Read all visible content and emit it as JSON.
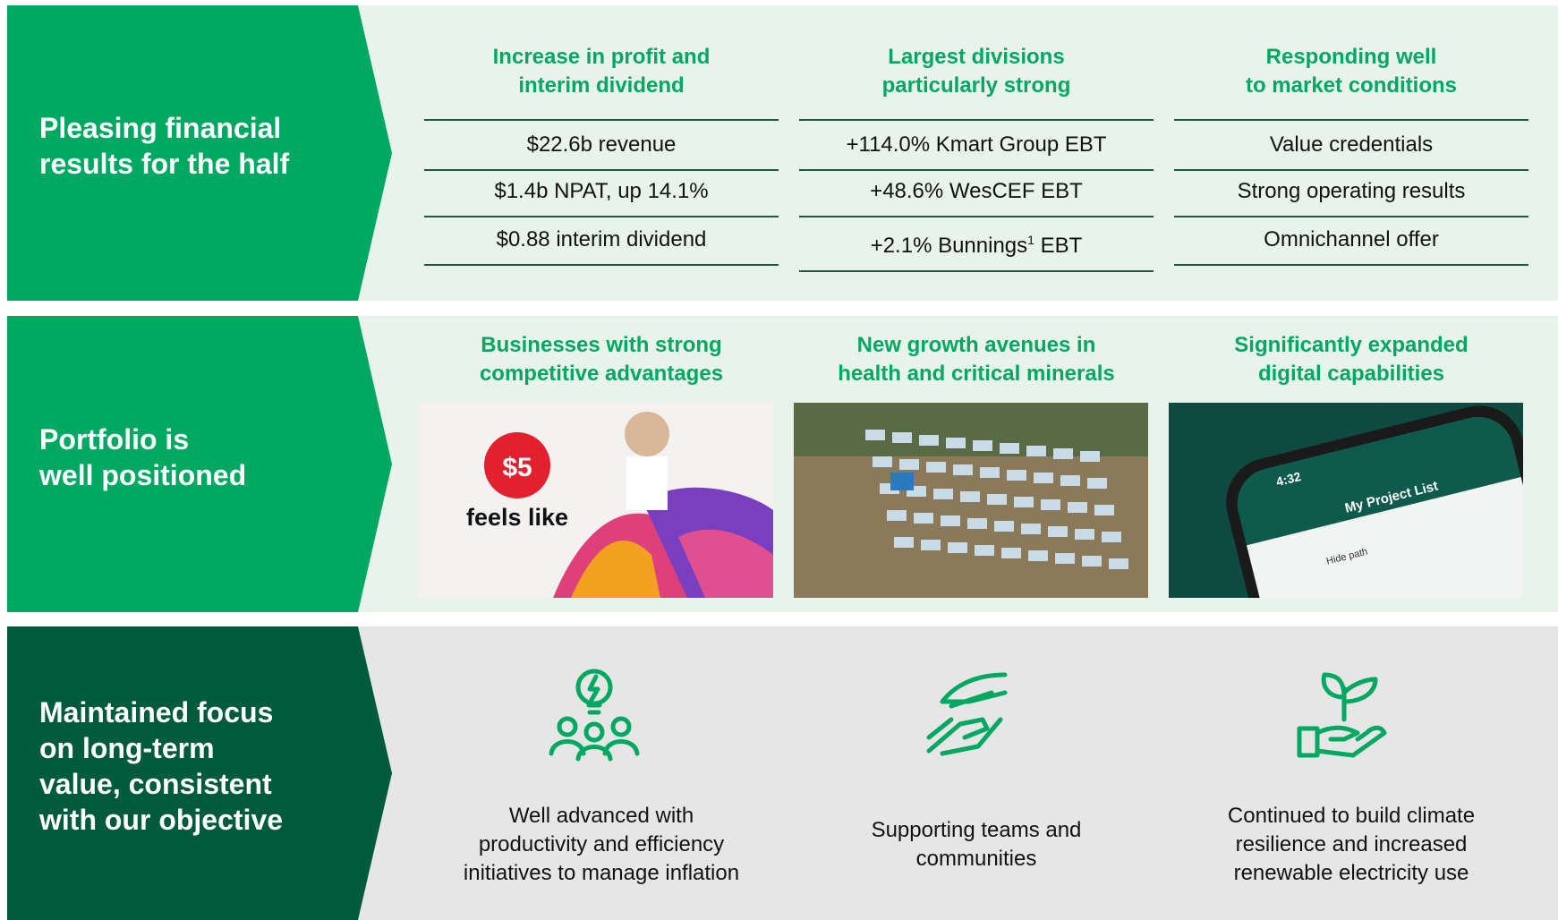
{
  "rows": [
    {
      "label": [
        "Pleasing financial",
        "results for the half"
      ],
      "columns": [
        {
          "heading": [
            "Increase in profit and",
            "interim dividend"
          ],
          "items": [
            {
              "text": "$22.6b revenue"
            },
            {
              "text": "$1.4b NPAT, up 14.1%"
            },
            {
              "text": "$0.88 interim dividend"
            }
          ]
        },
        {
          "heading": [
            "Largest divisions",
            "particularly strong"
          ],
          "items": [
            {
              "text": "+114.0% Kmart Group EBT"
            },
            {
              "text": "+48.6% WesCEF EBT"
            },
            {
              "text": "+2.1% Bunnings",
              "sup": "1",
              "after": " EBT"
            }
          ]
        },
        {
          "heading": [
            "Responding well",
            "to market conditions"
          ],
          "items": [
            {
              "text": "Value credentials"
            },
            {
              "text": "Strong operating results"
            },
            {
              "text": "Omnichannel offer"
            }
          ]
        }
      ]
    },
    {
      "label": [
        "Portfolio is",
        "well positioned"
      ],
      "columns": [
        {
          "heading": [
            "Businesses with strong",
            "competitive advantages"
          ],
          "image_text": [
            "$5",
            "feels like"
          ]
        },
        {
          "heading": [
            "New growth avenues in",
            "health and critical minerals"
          ]
        },
        {
          "heading": [
            "Significantly expanded",
            "digital capabilities"
          ],
          "image_text": [
            "4:32",
            "My Project List",
            "Hide path"
          ]
        }
      ]
    },
    {
      "label": [
        "Maintained focus",
        "on long-term",
        "value, consistent",
        "with our objective"
      ],
      "columns": [
        {
          "text": [
            "Well advanced with",
            "productivity and efficiency",
            "initiatives to manage inflation"
          ]
        },
        {
          "text": [
            "Supporting teams and",
            "communities"
          ]
        },
        {
          "text": [
            "Continued to build climate",
            "resilience and increased",
            "renewable electricity use"
          ]
        }
      ]
    }
  ]
}
